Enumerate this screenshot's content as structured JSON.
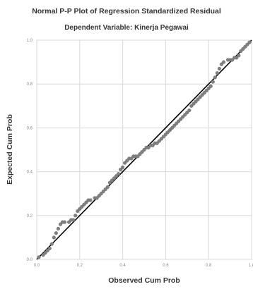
{
  "chart_data": {
    "type": "scatter",
    "title": "Normal P-P Plot of Regression Standardized Residual",
    "subtitle": "Dependent Variable: Kinerja Pegawai",
    "xlabel": "Observed Cum Prob",
    "ylabel": "Expected Cum Prob",
    "xlim": [
      0,
      1
    ],
    "ylim": [
      0,
      1
    ],
    "x_ticks": [
      "0.0",
      "0.2",
      "0.4",
      "0.6",
      "0.8",
      "1.0"
    ],
    "y_ticks": [
      "0.0",
      "0.2",
      "0.4",
      "0.6",
      "0.8",
      "1.0"
    ],
    "grid": true,
    "reference_line": [
      [
        0,
        0
      ],
      [
        1,
        1
      ]
    ],
    "colors": {
      "points": "#808080",
      "line": "#000000",
      "grid": "#d8d8d8"
    },
    "points": [
      [
        0.01,
        0.01
      ],
      [
        0.03,
        0.02
      ],
      [
        0.04,
        0.03
      ],
      [
        0.05,
        0.04
      ],
      [
        0.06,
        0.05
      ],
      [
        0.07,
        0.07
      ],
      [
        0.08,
        0.1
      ],
      [
        0.09,
        0.12
      ],
      [
        0.1,
        0.14
      ],
      [
        0.11,
        0.16
      ],
      [
        0.12,
        0.17
      ],
      [
        0.13,
        0.17
      ],
      [
        0.15,
        0.17
      ],
      [
        0.16,
        0.18
      ],
      [
        0.17,
        0.18
      ],
      [
        0.18,
        0.2
      ],
      [
        0.19,
        0.22
      ],
      [
        0.2,
        0.23
      ],
      [
        0.21,
        0.24
      ],
      [
        0.22,
        0.25
      ],
      [
        0.23,
        0.26
      ],
      [
        0.24,
        0.27
      ],
      [
        0.25,
        0.27
      ],
      [
        0.27,
        0.28
      ],
      [
        0.28,
        0.28
      ],
      [
        0.29,
        0.29
      ],
      [
        0.3,
        0.3
      ],
      [
        0.31,
        0.31
      ],
      [
        0.32,
        0.32
      ],
      [
        0.33,
        0.33
      ],
      [
        0.34,
        0.35
      ],
      [
        0.35,
        0.36
      ],
      [
        0.36,
        0.37
      ],
      [
        0.37,
        0.38
      ],
      [
        0.38,
        0.39
      ],
      [
        0.39,
        0.41
      ],
      [
        0.4,
        0.42
      ],
      [
        0.41,
        0.44
      ],
      [
        0.42,
        0.45
      ],
      [
        0.43,
        0.46
      ],
      [
        0.44,
        0.46
      ],
      [
        0.45,
        0.47
      ],
      [
        0.46,
        0.47
      ],
      [
        0.47,
        0.47
      ],
      [
        0.48,
        0.48
      ],
      [
        0.49,
        0.49
      ],
      [
        0.5,
        0.5
      ],
      [
        0.51,
        0.51
      ],
      [
        0.52,
        0.51
      ],
      [
        0.53,
        0.52
      ],
      [
        0.54,
        0.52
      ],
      [
        0.55,
        0.53
      ],
      [
        0.56,
        0.53
      ],
      [
        0.57,
        0.54
      ],
      [
        0.58,
        0.55
      ],
      [
        0.59,
        0.56
      ],
      [
        0.6,
        0.57
      ],
      [
        0.61,
        0.58
      ],
      [
        0.62,
        0.59
      ],
      [
        0.63,
        0.6
      ],
      [
        0.64,
        0.61
      ],
      [
        0.65,
        0.62
      ],
      [
        0.66,
        0.63
      ],
      [
        0.67,
        0.64
      ],
      [
        0.68,
        0.65
      ],
      [
        0.69,
        0.66
      ],
      [
        0.7,
        0.67
      ],
      [
        0.71,
        0.68
      ],
      [
        0.72,
        0.7
      ],
      [
        0.73,
        0.71
      ],
      [
        0.74,
        0.72
      ],
      [
        0.75,
        0.73
      ],
      [
        0.76,
        0.74
      ],
      [
        0.77,
        0.75
      ],
      [
        0.78,
        0.76
      ],
      [
        0.79,
        0.77
      ],
      [
        0.8,
        0.78
      ],
      [
        0.81,
        0.79
      ],
      [
        0.82,
        0.81
      ],
      [
        0.83,
        0.83
      ],
      [
        0.84,
        0.85
      ],
      [
        0.85,
        0.87
      ],
      [
        0.86,
        0.89
      ],
      [
        0.87,
        0.9
      ],
      [
        0.89,
        0.91
      ],
      [
        0.9,
        0.91
      ],
      [
        0.91,
        0.91
      ],
      [
        0.92,
        0.92
      ],
      [
        0.93,
        0.92
      ],
      [
        0.94,
        0.93
      ],
      [
        0.95,
        0.95
      ],
      [
        0.96,
        0.96
      ],
      [
        0.97,
        0.97
      ],
      [
        0.98,
        0.98
      ],
      [
        0.99,
        0.99
      ]
    ]
  }
}
